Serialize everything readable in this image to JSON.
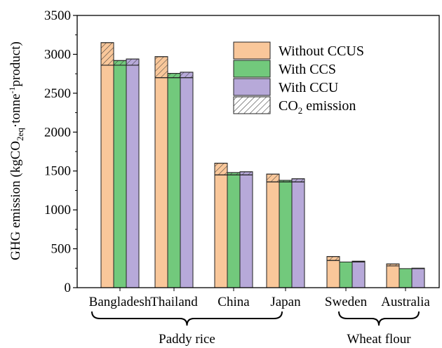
{
  "chart_data": {
    "type": "bar",
    "ylabel_parts": {
      "main": "GHG emission (kgCO",
      "sub": "2eq",
      "mid": "·tonne",
      "sup": "-1",
      "end": "product)"
    },
    "ylim": [
      0,
      3500
    ],
    "yticks": [
      0,
      500,
      1000,
      1500,
      2000,
      2500,
      3000,
      3500
    ],
    "categories": [
      "Bangladesh",
      "Thailand",
      "China",
      "Japan",
      "Sweden",
      "Australia"
    ],
    "groups": [
      {
        "label": "Paddy rice",
        "span": [
          0,
          3
        ]
      },
      {
        "label": "Wheat flour",
        "span": [
          4,
          5
        ]
      }
    ],
    "series": [
      {
        "name": "Without CCUS",
        "color": "#f9c79a",
        "base": [
          2860,
          2700,
          1450,
          1360,
          350,
          280
        ],
        "co2": [
          290,
          270,
          150,
          100,
          50,
          25
        ],
        "total": [
          3150,
          2970,
          1600,
          1460,
          400,
          305
        ]
      },
      {
        "name": "With CCS",
        "color": "#72c97c",
        "base": [
          2860,
          2700,
          1450,
          1360,
          330,
          245
        ],
        "co2": [
          60,
          55,
          30,
          20,
          0,
          0
        ],
        "total": [
          2920,
          2755,
          1480,
          1380,
          330,
          245
        ]
      },
      {
        "name": "With CCU",
        "color": "#b7a9d9",
        "base": [
          2860,
          2700,
          1450,
          1360,
          330,
          245
        ],
        "co2": [
          80,
          70,
          40,
          40,
          10,
          5
        ],
        "total": [
          2940,
          2770,
          1490,
          1400,
          340,
          250
        ]
      }
    ],
    "legend": {
      "entries": [
        "Without CCUS",
        "With CCS",
        "With CCU"
      ],
      "co2_label_main": "CO",
      "co2_label_sub": "2",
      "co2_label_end": " emission",
      "position": "top-right"
    },
    "hatch_color": "#333333",
    "grid": false
  }
}
